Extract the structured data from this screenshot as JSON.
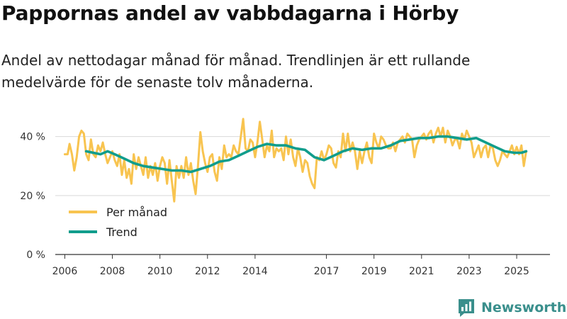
{
  "brand": {
    "name": "Newsworthy",
    "icon": "bar-chart-logo-icon",
    "color": "#3a8f8c"
  },
  "colors": {
    "monthly": "#f8c450",
    "trend": "#119d8c",
    "grid": "#d9d9d9",
    "axis": "#333333"
  },
  "chart_data": {
    "type": "line",
    "title": "Pappornas andel av vabbdagarna i Hörby",
    "subtitle": "Andel av nettodagar månad för månad. Trendlinjen är ett rullande medelvärde för de senaste tolv månaderna.",
    "xlabel": "",
    "ylabel": "",
    "xlim": [
      2005.6,
      2026.4
    ],
    "ylim": [
      0,
      44
    ],
    "yticks": [
      0,
      20,
      40
    ],
    "ytick_labels": [
      "0 %",
      "20 %",
      "40 %"
    ],
    "xticks": [
      2006,
      2008,
      2010,
      2012,
      2014,
      2017,
      2019,
      2021,
      2023,
      2025
    ],
    "xtick_labels": [
      "2006",
      "2008",
      "2010",
      "2012",
      "2014",
      "2017",
      "2019",
      "2021",
      "2023",
      "2025"
    ],
    "grid": true,
    "legend_position": "bottom-left",
    "series": [
      {
        "name": "Per månad",
        "points": [
          [
            2006.0,
            34
          ],
          [
            2006.12,
            34
          ],
          [
            2006.2,
            37.5
          ],
          [
            2006.3,
            34
          ],
          [
            2006.4,
            28.5
          ],
          [
            2006.5,
            33
          ],
          [
            2006.6,
            40
          ],
          [
            2006.7,
            42
          ],
          [
            2006.8,
            41
          ],
          [
            2006.9,
            34
          ],
          [
            2007.0,
            32
          ],
          [
            2007.1,
            39
          ],
          [
            2007.2,
            34
          ],
          [
            2007.3,
            33
          ],
          [
            2007.4,
            37
          ],
          [
            2007.5,
            35
          ],
          [
            2007.6,
            38
          ],
          [
            2007.7,
            34
          ],
          [
            2007.8,
            31
          ],
          [
            2007.9,
            33
          ],
          [
            2008.0,
            35
          ],
          [
            2008.1,
            32
          ],
          [
            2008.2,
            30
          ],
          [
            2008.3,
            34
          ],
          [
            2008.4,
            27
          ],
          [
            2008.5,
            32
          ],
          [
            2008.6,
            26
          ],
          [
            2008.7,
            29
          ],
          [
            2008.8,
            24
          ],
          [
            2008.9,
            34
          ],
          [
            2009.0,
            29
          ],
          [
            2009.1,
            33
          ],
          [
            2009.2,
            30
          ],
          [
            2009.3,
            27
          ],
          [
            2009.4,
            33
          ],
          [
            2009.5,
            26
          ],
          [
            2009.6,
            30
          ],
          [
            2009.7,
            27
          ],
          [
            2009.8,
            31
          ],
          [
            2009.9,
            25
          ],
          [
            2010.0,
            30
          ],
          [
            2010.1,
            33
          ],
          [
            2010.2,
            31
          ],
          [
            2010.3,
            24
          ],
          [
            2010.4,
            32
          ],
          [
            2010.5,
            25
          ],
          [
            2010.6,
            18
          ],
          [
            2010.7,
            30
          ],
          [
            2010.8,
            26
          ],
          [
            2010.9,
            30
          ],
          [
            2011.0,
            26
          ],
          [
            2011.1,
            33
          ],
          [
            2011.2,
            27
          ],
          [
            2011.3,
            31
          ],
          [
            2011.4,
            25
          ],
          [
            2011.5,
            20.5
          ],
          [
            2011.6,
            30
          ],
          [
            2011.7,
            41.5
          ],
          [
            2011.8,
            35
          ],
          [
            2011.9,
            31
          ],
          [
            2012.0,
            28
          ],
          [
            2012.1,
            33
          ],
          [
            2012.2,
            34
          ],
          [
            2012.3,
            28
          ],
          [
            2012.4,
            25
          ],
          [
            2012.5,
            33
          ],
          [
            2012.6,
            29
          ],
          [
            2012.7,
            37
          ],
          [
            2012.8,
            33
          ],
          [
            2012.9,
            34
          ],
          [
            2013.0,
            33
          ],
          [
            2013.1,
            37
          ],
          [
            2013.2,
            35
          ],
          [
            2013.3,
            34
          ],
          [
            2013.4,
            40
          ],
          [
            2013.5,
            46
          ],
          [
            2013.6,
            36
          ],
          [
            2013.7,
            35
          ],
          [
            2013.8,
            39
          ],
          [
            2013.9,
            38
          ],
          [
            2014.0,
            33
          ],
          [
            2014.1,
            38
          ],
          [
            2014.2,
            45
          ],
          [
            2014.3,
            39
          ],
          [
            2014.4,
            33
          ],
          [
            2014.5,
            37
          ],
          [
            2014.6,
            35
          ],
          [
            2014.7,
            42
          ],
          [
            2014.8,
            33
          ],
          [
            2014.9,
            36
          ],
          [
            2015.0,
            35
          ],
          [
            2015.1,
            36
          ],
          [
            2015.2,
            32
          ],
          [
            2015.3,
            40
          ],
          [
            2015.4,
            34
          ],
          [
            2015.5,
            39
          ],
          [
            2015.6,
            33
          ],
          [
            2015.7,
            30
          ],
          [
            2015.8,
            36
          ],
          [
            2015.9,
            33
          ],
          [
            2016.0,
            28
          ],
          [
            2016.1,
            32
          ],
          [
            2016.2,
            31
          ],
          [
            2016.3,
            26.5
          ],
          [
            2016.4,
            24
          ],
          [
            2016.5,
            22.5
          ],
          [
            2016.6,
            33
          ],
          [
            2016.7,
            32
          ],
          [
            2016.8,
            35
          ],
          [
            2016.9,
            32
          ],
          [
            2017.0,
            34
          ],
          [
            2017.1,
            37
          ],
          [
            2017.2,
            36
          ],
          [
            2017.3,
            31
          ],
          [
            2017.4,
            29.5
          ],
          [
            2017.5,
            35
          ],
          [
            2017.6,
            33
          ],
          [
            2017.7,
            41
          ],
          [
            2017.8,
            35
          ],
          [
            2017.9,
            41
          ],
          [
            2018.0,
            35
          ],
          [
            2018.1,
            38
          ],
          [
            2018.2,
            35
          ],
          [
            2018.3,
            29
          ],
          [
            2018.4,
            35
          ],
          [
            2018.5,
            31
          ],
          [
            2018.6,
            35
          ],
          [
            2018.7,
            38
          ],
          [
            2018.8,
            33
          ],
          [
            2018.9,
            31
          ],
          [
            2019.0,
            41
          ],
          [
            2019.1,
            38
          ],
          [
            2019.2,
            36
          ],
          [
            2019.3,
            40
          ],
          [
            2019.4,
            39
          ],
          [
            2019.5,
            37
          ],
          [
            2019.6,
            36
          ],
          [
            2019.7,
            36
          ],
          [
            2019.8,
            38
          ],
          [
            2019.9,
            35
          ],
          [
            2020.0,
            38
          ],
          [
            2020.1,
            39
          ],
          [
            2020.2,
            40
          ],
          [
            2020.3,
            38
          ],
          [
            2020.4,
            41
          ],
          [
            2020.5,
            40
          ],
          [
            2020.6,
            39
          ],
          [
            2020.7,
            33
          ],
          [
            2020.8,
            37
          ],
          [
            2020.9,
            39
          ],
          [
            2021.0,
            40
          ],
          [
            2021.1,
            41
          ],
          [
            2021.2,
            39
          ],
          [
            2021.3,
            41
          ],
          [
            2021.4,
            42
          ],
          [
            2021.5,
            38
          ],
          [
            2021.6,
            41
          ],
          [
            2021.7,
            43
          ],
          [
            2021.8,
            40
          ],
          [
            2021.9,
            43
          ],
          [
            2022.0,
            38
          ],
          [
            2022.1,
            42
          ],
          [
            2022.2,
            40
          ],
          [
            2022.3,
            37
          ],
          [
            2022.4,
            39
          ],
          [
            2022.5,
            39
          ],
          [
            2022.6,
            36
          ],
          [
            2022.7,
            41
          ],
          [
            2022.8,
            39
          ],
          [
            2022.9,
            42
          ],
          [
            2023.0,
            40
          ],
          [
            2023.1,
            38
          ],
          [
            2023.2,
            33
          ],
          [
            2023.3,
            35
          ],
          [
            2023.4,
            37
          ],
          [
            2023.5,
            33
          ],
          [
            2023.6,
            36
          ],
          [
            2023.7,
            37
          ],
          [
            2023.8,
            33
          ],
          [
            2023.9,
            37
          ],
          [
            2024.0,
            36
          ],
          [
            2024.1,
            32
          ],
          [
            2024.2,
            30
          ],
          [
            2024.3,
            32
          ],
          [
            2024.4,
            35
          ],
          [
            2024.5,
            34
          ],
          [
            2024.6,
            33
          ],
          [
            2024.7,
            35
          ],
          [
            2024.8,
            37
          ],
          [
            2024.9,
            34
          ],
          [
            2025.0,
            36.5
          ],
          [
            2025.1,
            34
          ],
          [
            2025.2,
            37
          ],
          [
            2025.3,
            30
          ],
          [
            2025.4,
            35
          ]
        ]
      },
      {
        "name": "Trend",
        "points": [
          [
            2006.9,
            35
          ],
          [
            2007.2,
            34.5
          ],
          [
            2007.5,
            34
          ],
          [
            2007.8,
            35
          ],
          [
            2008.1,
            34
          ],
          [
            2008.5,
            32.5
          ],
          [
            2008.9,
            31
          ],
          [
            2009.3,
            30
          ],
          [
            2009.7,
            29.5
          ],
          [
            2010.1,
            29
          ],
          [
            2010.5,
            28.5
          ],
          [
            2010.9,
            28.5
          ],
          [
            2011.3,
            28
          ],
          [
            2011.7,
            29
          ],
          [
            2012.1,
            30
          ],
          [
            2012.5,
            31.5
          ],
          [
            2012.9,
            32
          ],
          [
            2013.3,
            33.5
          ],
          [
            2013.7,
            35
          ],
          [
            2014.1,
            36.5
          ],
          [
            2014.5,
            37.5
          ],
          [
            2014.9,
            37
          ],
          [
            2015.3,
            37
          ],
          [
            2015.7,
            36
          ],
          [
            2016.1,
            35.5
          ],
          [
            2016.5,
            33
          ],
          [
            2016.9,
            32
          ],
          [
            2017.3,
            33.5
          ],
          [
            2017.7,
            35
          ],
          [
            2018.1,
            36
          ],
          [
            2018.5,
            35.5
          ],
          [
            2018.9,
            36
          ],
          [
            2019.3,
            36
          ],
          [
            2019.7,
            37
          ],
          [
            2020.1,
            38.5
          ],
          [
            2020.5,
            39
          ],
          [
            2020.9,
            39.5
          ],
          [
            2021.3,
            39.5
          ],
          [
            2021.7,
            40
          ],
          [
            2022.1,
            40
          ],
          [
            2022.5,
            39.5
          ],
          [
            2022.9,
            39
          ],
          [
            2023.3,
            39.5
          ],
          [
            2023.7,
            38
          ],
          [
            2024.1,
            36.5
          ],
          [
            2024.5,
            35
          ],
          [
            2024.9,
            34.5
          ],
          [
            2025.2,
            34.5
          ],
          [
            2025.4,
            35
          ]
        ]
      }
    ]
  }
}
